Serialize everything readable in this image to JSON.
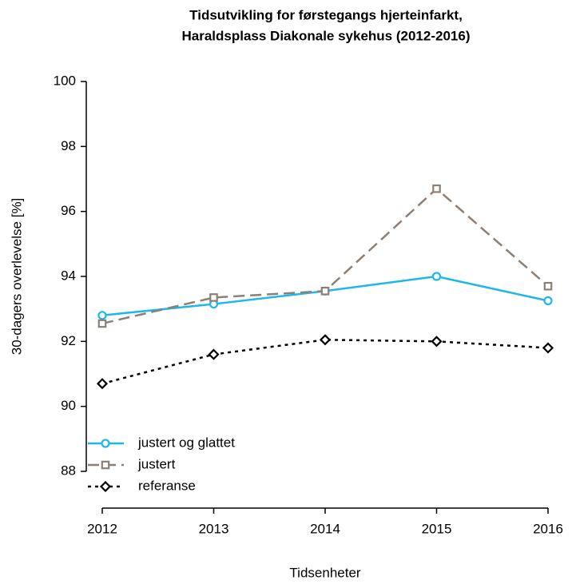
{
  "chart_data": {
    "type": "line",
    "title": [
      "Tidsutvikling for førstegangs hjerteinfarkt,",
      "Haraldsplass Diakonale sykehus (2012-2016)"
    ],
    "x_label": "Tidsenheter",
    "y_label": "30-dagers overlevelse [%]",
    "categories": [
      "2012",
      "2013",
      "2014",
      "2015",
      "2016"
    ],
    "series": [
      {
        "name": "justert og glattet",
        "color": "#1cb8ea",
        "line_style": "solid",
        "marker": "circle",
        "values": [
          92.8,
          93.15,
          93.55,
          94.0,
          93.25
        ]
      },
      {
        "name": "justert",
        "color": "#8c7f76",
        "line_style": "dashed",
        "marker": "square",
        "values": [
          92.55,
          93.35,
          93.55,
          96.7,
          93.7
        ]
      },
      {
        "name": "referanse",
        "color": "#000000",
        "line_style": "dotted",
        "marker": "diamond",
        "values": [
          90.7,
          91.6,
          92.05,
          92.0,
          91.8
        ]
      }
    ],
    "ylim": [
      88,
      100
    ],
    "yticks": [
      88,
      90,
      92,
      94,
      96,
      98,
      100
    ],
    "grid": false,
    "legend": "bottom-left"
  }
}
